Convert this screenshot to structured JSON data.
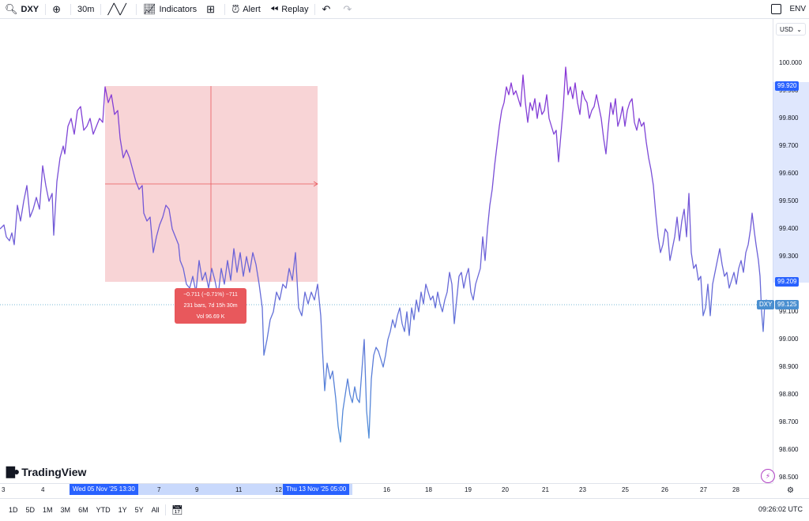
{
  "toolbar": {
    "symbol": "DXY",
    "interval": "30m",
    "indicators_label": "Indicators",
    "alert_label": "Alert",
    "replay_label": "Replay",
    "right_label": "ENV"
  },
  "price_axis": {
    "currency": "USD",
    "ticks": [
      "100.000",
      "99.900",
      "99.800",
      "99.700",
      "99.600",
      "99.500",
      "99.400",
      "99.300",
      "99.100",
      "99.000",
      "98.900",
      "98.800",
      "98.700",
      "98.600",
      "98.500"
    ],
    "labels": {
      "high": "99.920",
      "low": "99.209",
      "last": "99.125",
      "last_symbol": "DXY"
    }
  },
  "time_axis": {
    "ticks": [
      "3",
      "4",
      "7",
      "9",
      "11",
      "12",
      "16",
      "18",
      "19",
      "20",
      "21",
      "23",
      "25",
      "26",
      "27",
      "28"
    ],
    "range_start": "Wed 05 Nov '25   13:30",
    "range_end": "Thu 13 Nov '25   05:00"
  },
  "measure": {
    "line1": "−0.711 (−0.71%) −711",
    "line2": "231 bars, 7d 15h 30m",
    "line3": "Vol 96.69 K"
  },
  "brand": {
    "name": "TradingView"
  },
  "ranges": [
    "1D",
    "5D",
    "1M",
    "3M",
    "6M",
    "YTD",
    "1Y",
    "5Y",
    "All"
  ],
  "clock": "09:26:02 UTC",
  "colors": {
    "line_start": "#4f8fd9",
    "line_end": "#8a35d6",
    "measure_fill": "#f5c6c8",
    "measure_label": "#e8585c",
    "accent": "#2962ff"
  },
  "chart_data": {
    "type": "line",
    "series": [
      {
        "x": [
          "3",
          "4",
          "5",
          "7",
          "9",
          "11",
          "12",
          "13",
          "16",
          "18",
          "19",
          "20",
          "21",
          "23",
          "25",
          "26",
          "27",
          "28"
        ],
        "values": [
          99.4,
          99.45,
          99.86,
          99.6,
          99.38,
          99.3,
          99.32,
          98.7,
          99.0,
          99.1,
          99.25,
          99.95,
          99.85,
          99.98,
          99.8,
          99.35,
          99.2,
          99.13
        ],
        "_comment_removed": true
      }
    ],
    "ylim": [
      98.45,
      100.1
    ],
    "measured_range": {
      "from": "Wed 05 Nov '25 13:30",
      "to": "Thu 13 Nov '25 05:00",
      "change": -0.711
    }
  }
}
